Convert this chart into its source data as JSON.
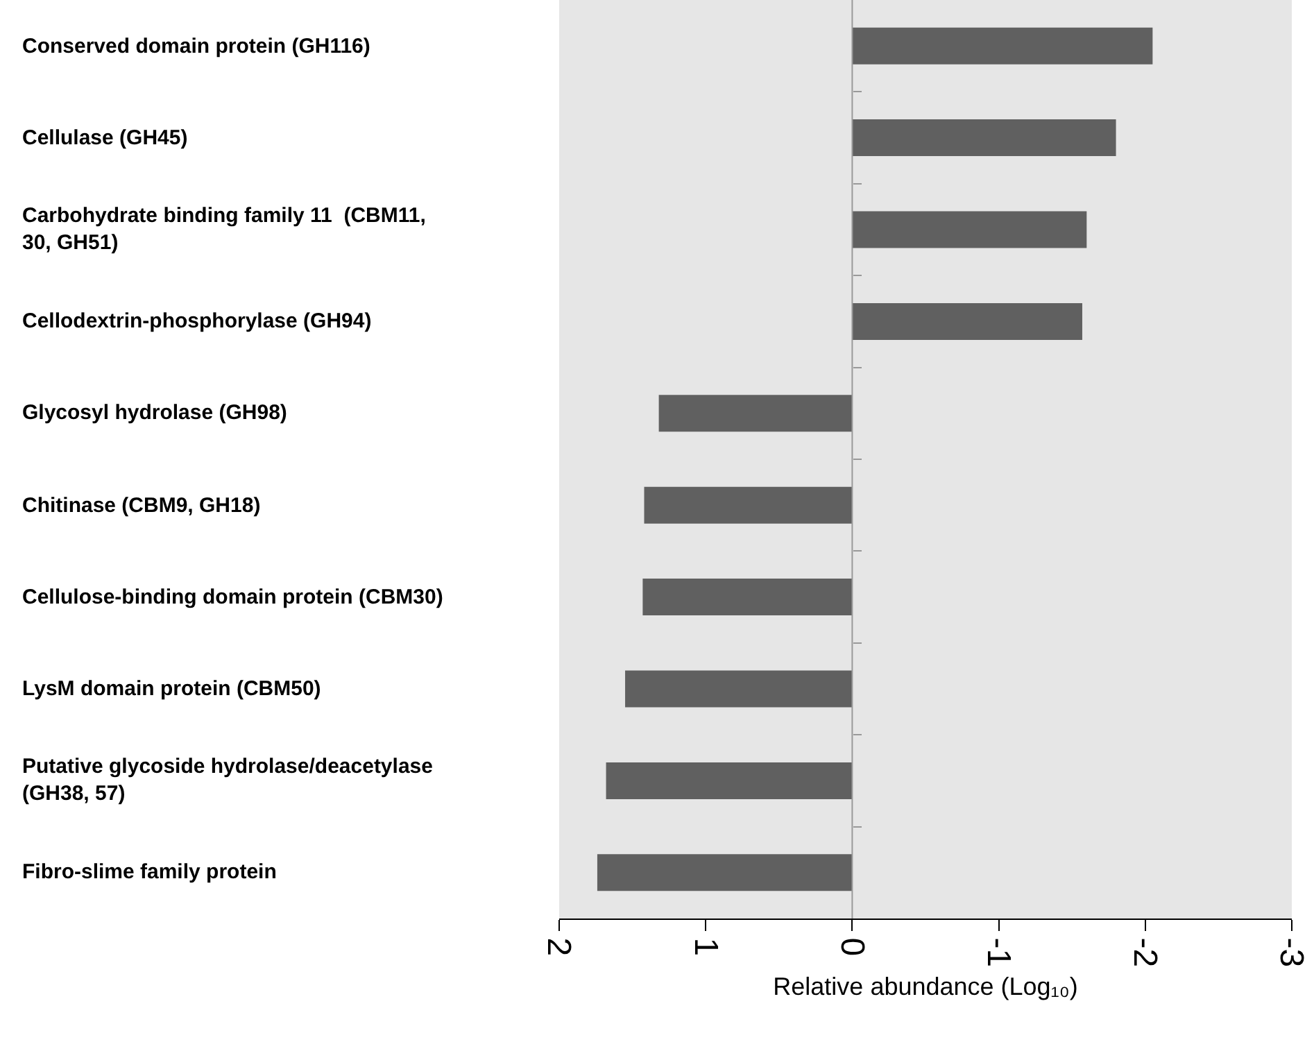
{
  "chart_data": {
    "type": "bar",
    "orientation": "horizontal",
    "xlabel": "Relative abundance (Log₁₀)",
    "categories": [
      "Conserved domain protein (GH116)",
      "Cellulase (GH45)",
      "Carbohydrate binding family 11  (CBM11,\n30, GH51)",
      "Cellodextrin-phosphorylase (GH94)",
      "Glycosyl hydrolase (GH98)",
      "Chitinase (CBM9, GH18)",
      "Cellulose-binding domain protein (CBM30)",
      "LysM domain protein (CBM50)",
      "Putative glycoside hydrolase/deacetylase\n(GH38, 57)",
      "Fibro-slime family protein"
    ],
    "values": [
      -2.05,
      -1.8,
      -1.6,
      -1.57,
      1.32,
      1.42,
      1.43,
      1.55,
      1.68,
      1.74
    ],
    "color": "#606060",
    "xlim": [
      2,
      -3
    ],
    "xticks": [
      2,
      1,
      0,
      -1,
      -2,
      -3
    ],
    "ref_lines": [
      {
        "axis": "x",
        "value": 0,
        "color": "#999999"
      }
    ]
  }
}
